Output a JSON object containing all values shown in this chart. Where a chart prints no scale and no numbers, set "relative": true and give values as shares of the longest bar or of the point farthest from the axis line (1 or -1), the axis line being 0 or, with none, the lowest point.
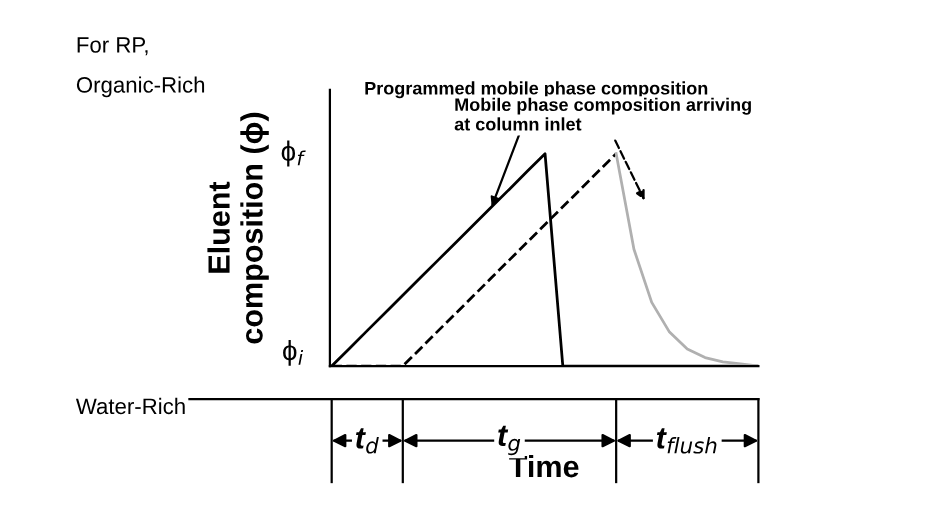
{
  "chart_data": {
    "type": "line",
    "relative": true,
    "xlabel": "Time",
    "ylabel": "Eluent\ncomposition (ϕ)",
    "categories": [
      null,
      null,
      null,
      null,
      null,
      null,
      null,
      null,
      null,
      null,
      null,
      null,
      null,
      null,
      null,
      null,
      null,
      null,
      null,
      null,
      null,
      null,
      null,
      null,
      null
    ],
    "series": [
      {
        "color": "#000000",
        "line_style": "solid",
        "values": [
          0,
          0.083,
          0.167,
          0.25,
          0.333,
          0.417,
          0.5,
          0.583,
          0.667,
          0.75,
          0.833,
          0.917,
          1,
          0,
          0,
          0,
          0,
          0,
          0,
          0,
          0,
          0,
          0,
          0,
          0
        ]
      },
      {
        "color": "#000000",
        "line_style": "dashed",
        "values": [
          0,
          0,
          0,
          0,
          0,
          0.083,
          0.167,
          0.25,
          0.333,
          0.417,
          0.5,
          0.583,
          0.667,
          0.75,
          0.833,
          0.917,
          1,
          null,
          null,
          null,
          null,
          null,
          null,
          null,
          null
        ]
      },
      {
        "color": "#b0b0b0",
        "line_style": "solid",
        "values": [
          null,
          null,
          null,
          null,
          null,
          null,
          null,
          null,
          null,
          null,
          null,
          null,
          null,
          null,
          null,
          null,
          1,
          0.55,
          0.3,
          0.16,
          0.08,
          0.04,
          0.02,
          0.01,
          0
        ]
      }
    ],
    "annotations": [
      "For RP,\nOrganic-Rich",
      "Water-Rich",
      "ϕ$_{f}$",
      "ϕ$_{i}$",
      "Programmed mobile phase composition",
      "Mobile phase composition arriving\nat column inlet",
      "t$_{d}$",
      "t$_{g}$",
      "t$_{flush}$"
    ]
  }
}
